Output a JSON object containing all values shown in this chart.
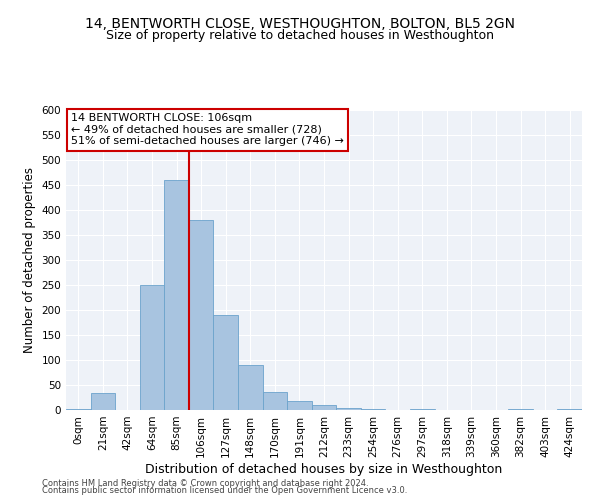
{
  "title": "14, BENTWORTH CLOSE, WESTHOUGHTON, BOLTON, BL5 2GN",
  "subtitle": "Size of property relative to detached houses in Westhoughton",
  "xlabel": "Distribution of detached houses by size in Westhoughton",
  "ylabel": "Number of detached properties",
  "bins": [
    "0sqm",
    "21sqm",
    "42sqm",
    "64sqm",
    "85sqm",
    "106sqm",
    "127sqm",
    "148sqm",
    "170sqm",
    "191sqm",
    "212sqm",
    "233sqm",
    "254sqm",
    "276sqm",
    "297sqm",
    "318sqm",
    "339sqm",
    "360sqm",
    "382sqm",
    "403sqm",
    "424sqm"
  ],
  "values": [
    2,
    35,
    0,
    250,
    460,
    380,
    190,
    90,
    37,
    18,
    10,
    5,
    2,
    0,
    3,
    0,
    0,
    0,
    2,
    0,
    2
  ],
  "bar_color": "#a8c4e0",
  "bar_edge_color": "#6ba3cc",
  "vline_color": "#cc0000",
  "annotation_text": "14 BENTWORTH CLOSE: 106sqm\n← 49% of detached houses are smaller (728)\n51% of semi-detached houses are larger (746) →",
  "annotation_box_color": "#ffffff",
  "annotation_box_edge": "#cc0000",
  "ylim": [
    0,
    600
  ],
  "yticks": [
    0,
    50,
    100,
    150,
    200,
    250,
    300,
    350,
    400,
    450,
    500,
    550,
    600
  ],
  "background_color": "#eef2f8",
  "footer1": "Contains HM Land Registry data © Crown copyright and database right 2024.",
  "footer2": "Contains public sector information licensed under the Open Government Licence v3.0.",
  "title_fontsize": 10,
  "subtitle_fontsize": 9,
  "xlabel_fontsize": 9,
  "ylabel_fontsize": 8.5,
  "tick_fontsize": 7.5,
  "annotation_fontsize": 8,
  "footer_fontsize": 6
}
